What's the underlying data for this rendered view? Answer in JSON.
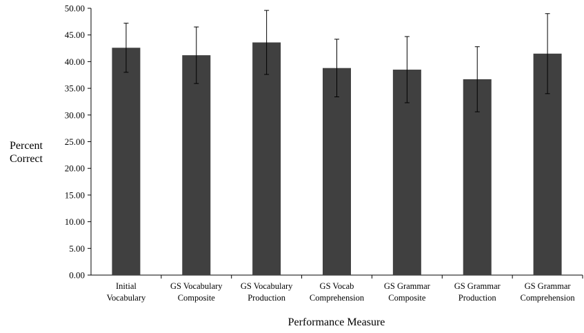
{
  "chart_data": {
    "type": "bar",
    "title": "",
    "xlabel": "Performance Measure",
    "ylabel": [
      "Percent",
      "Correct"
    ],
    "ylim": [
      0,
      50
    ],
    "ytick_step": 5,
    "yticks": [
      "0.00",
      "5.00",
      "10.00",
      "15.00",
      "20.00",
      "25.00",
      "30.00",
      "35.00",
      "40.00",
      "45.00",
      "50.00"
    ],
    "grid": false,
    "legend": "none",
    "categories": [
      [
        "Initial",
        "Vocabulary"
      ],
      [
        "GS Vocabulary",
        "Composite"
      ],
      [
        "GS Vocabulary",
        "Production"
      ],
      [
        "GS Vocab",
        "Comprehension"
      ],
      [
        "GS Grammar",
        "Composite"
      ],
      [
        "GS Grammar",
        "Production"
      ],
      [
        "GS Grammar",
        "Comprehension"
      ]
    ],
    "values": [
      42.6,
      41.2,
      43.6,
      38.8,
      38.5,
      36.7,
      41.5
    ],
    "errors": [
      4.6,
      5.3,
      6.0,
      5.4,
      6.2,
      6.1,
      7.5
    ],
    "bar_color": "#404040"
  }
}
